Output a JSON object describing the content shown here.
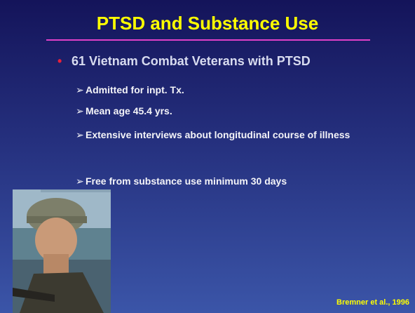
{
  "title": "PTSD and Substance Use",
  "bullet": {
    "text": "61 Vietnam Combat Veterans with PTSD",
    "subpoints": [
      "Admitted for inpt. Tx.",
      "Mean age 45.4 yrs.",
      "Extensive interviews about longitudinal course of illness",
      "Free from substance use minimum 30 days"
    ]
  },
  "citation": "Bremner et al., 1996"
}
